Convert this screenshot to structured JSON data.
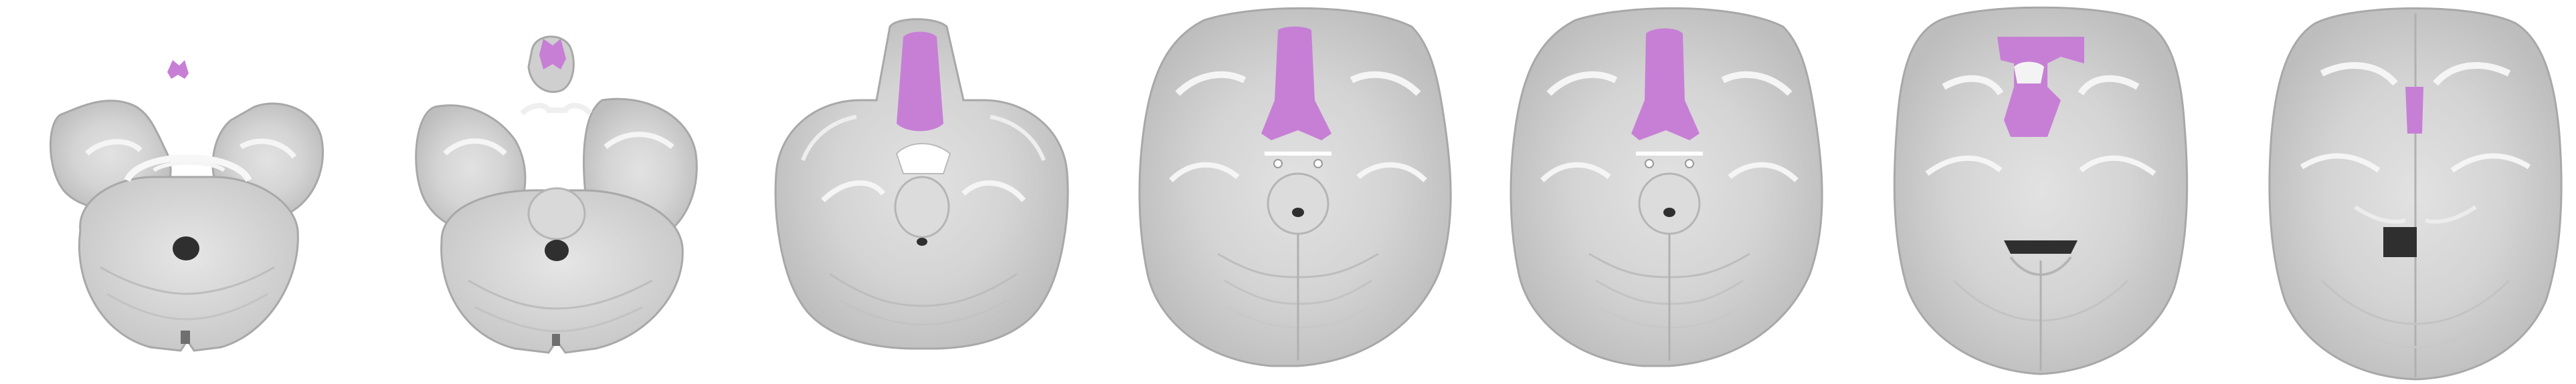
{
  "figure": {
    "background": "#ffffff",
    "overlay_color": "#c77fd6",
    "brain_light": "#f3f3f3",
    "brain_mid": "#d7d7d7",
    "brain_dark": "#8f8f8f",
    "ventricle_color": "#2f2f2f",
    "slices": [
      {
        "kind": "cerebellum-low"
      },
      {
        "kind": "cerebellum-temporal"
      },
      {
        "kind": "orbitofrontal"
      },
      {
        "kind": "midbrain-level"
      },
      {
        "kind": "midbrain-level-2"
      },
      {
        "kind": "basal-ganglia"
      },
      {
        "kind": "lateral-ventricles"
      }
    ]
  }
}
